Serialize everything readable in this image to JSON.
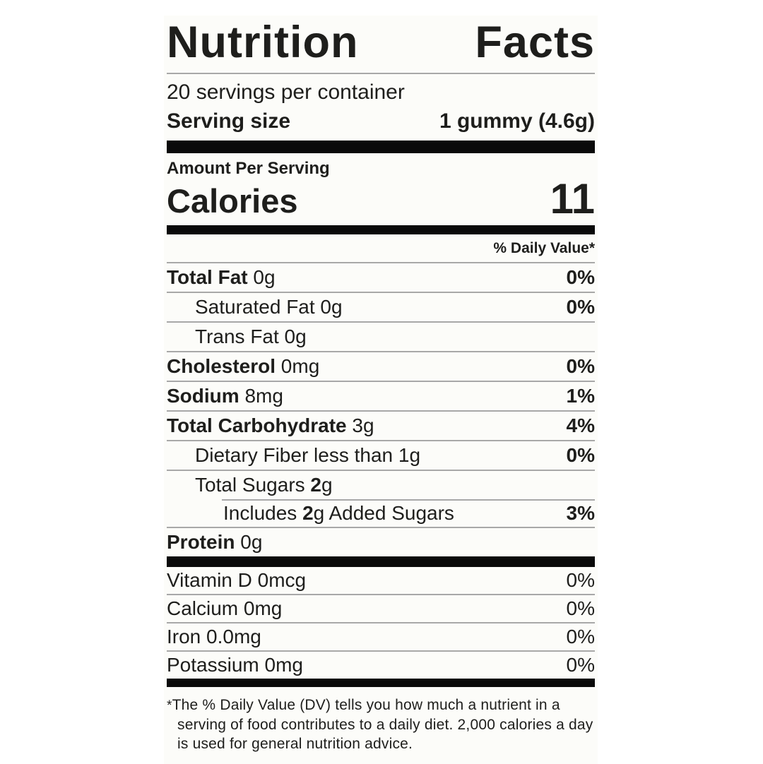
{
  "label": {
    "title": "Nutrition Facts",
    "servings_line": "20 servings per container",
    "serving_size": {
      "label": "Serving size",
      "value": "1 gummy (4.6g)"
    },
    "amount_per_serving": "Amount Per Serving",
    "calories": {
      "label": "Calories",
      "value": "11"
    },
    "dv_header": "% Daily Value*",
    "rows": [
      {
        "pre": "",
        "bold": "Total Fat",
        "post": " 0g",
        "dv": "0%"
      },
      {
        "pre": "Saturated Fat 0g",
        "bold": "",
        "post": "",
        "dv": "0%"
      },
      {
        "pre": "Trans Fat 0g",
        "bold": "",
        "post": "",
        "dv": ""
      },
      {
        "pre": "",
        "bold": "Cholesterol",
        "post": " 0mg",
        "dv": "0%"
      },
      {
        "pre": "",
        "bold": "Sodium",
        "post": " 8mg",
        "dv": "1%"
      },
      {
        "pre": "",
        "bold": "Total Carbohydrate",
        "post": " 3g",
        "dv": "4%"
      },
      {
        "pre": "Dietary Fiber less than 1g",
        "bold": "",
        "post": "",
        "dv": "0%"
      },
      {
        "pre": "Total Sugars ",
        "bold": "2",
        "post": "g",
        "dv": ""
      },
      {
        "pre": "Includes ",
        "bold": "2",
        "post": "g Added Sugars",
        "dv": "3%"
      },
      {
        "pre": "",
        "bold": "Protein",
        "post": " 0g",
        "dv": ""
      }
    ],
    "micros": [
      {
        "name": "Vitamin D 0mcg",
        "dv": "0%"
      },
      {
        "name": "Calcium 0mg",
        "dv": "0%"
      },
      {
        "name": "Iron 0.0mg",
        "dv": "0%"
      },
      {
        "name": "Potassium 0mg",
        "dv": "0%"
      }
    ],
    "footnote": {
      "marker": "*",
      "text": "The % Daily Value (DV) tells you how much a nutrient in a serving of food contributes to a daily diet. 2,000 calories a day is used for general nutrition advice."
    },
    "colors": {
      "text": "#1e1e1c",
      "bar": "#0a0a0a",
      "hairline": "#a8a8a8",
      "label_background": "#fcfcf9",
      "page_background": "#ffffff"
    }
  }
}
